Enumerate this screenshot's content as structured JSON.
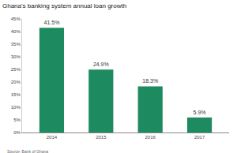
{
  "chart_data": {
    "type": "bar",
    "title": "Ghana's banking system annual loan growth",
    "source": "Source: Bank of Ghana",
    "categories": [
      "2014",
      "2015",
      "2016",
      "2017"
    ],
    "values": [
      41.5,
      24.9,
      18.3,
      5.9
    ],
    "value_labels": [
      "41.5%",
      "24.9%",
      "18.3%",
      "5.9%"
    ],
    "data_labels": true,
    "color": "#1d8a5f",
    "ylim": [
      0,
      45
    ],
    "yticks": [
      {
        "value": 0,
        "label": "0%"
      },
      {
        "value": 5,
        "label": "5%"
      },
      {
        "value": 10,
        "label": "10%"
      },
      {
        "value": 15,
        "label": "15%"
      },
      {
        "value": 20,
        "label": "20%"
      },
      {
        "value": 25,
        "label": "25%"
      },
      {
        "value": 30,
        "label": "30%"
      },
      {
        "value": 35,
        "label": "35%"
      },
      {
        "value": 40,
        "label": "40%"
      },
      {
        "value": 45,
        "label": "45%"
      }
    ],
    "grid": false
  }
}
